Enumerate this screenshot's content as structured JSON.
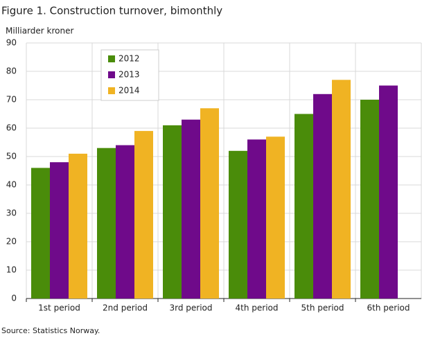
{
  "chart_data": {
    "type": "bar",
    "title": "Figure 1. Construction turnover, bimonthly",
    "ylabel": "Milliarder  kroner",
    "source": "Source: Statistics Norway.",
    "categories": [
      "1st period",
      "2nd period",
      "3rd period",
      "4th period",
      "5th period",
      "6th period"
    ],
    "series": [
      {
        "name": "2012",
        "color": "#4a8c0a",
        "values": [
          46,
          53,
          61,
          52,
          65,
          70
        ]
      },
      {
        "name": "2013",
        "color": "#6f0a8a",
        "values": [
          48,
          54,
          63,
          56,
          72,
          75
        ]
      },
      {
        "name": "2014",
        "color": "#f0b323",
        "values": [
          51,
          59,
          67,
          57,
          77,
          null
        ]
      }
    ],
    "ylim": [
      0,
      90
    ],
    "yticks": [
      0,
      10,
      20,
      30,
      40,
      50,
      60,
      70,
      80,
      90
    ],
    "grid": true,
    "legend": "upper-left"
  }
}
